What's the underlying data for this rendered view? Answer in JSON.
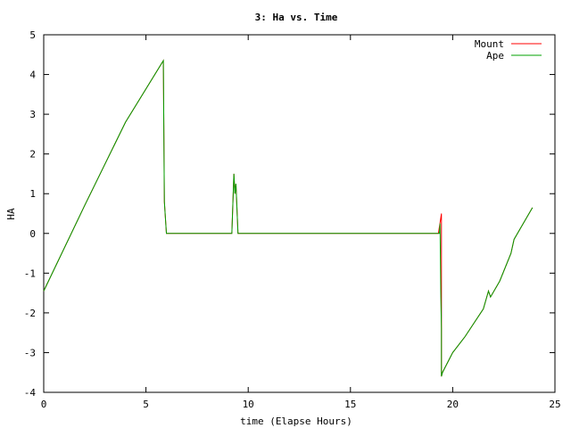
{
  "chart_data": {
    "type": "line",
    "title": "3: Ha vs. Time",
    "xlabel": "time (Elapse Hours)",
    "ylabel": "HA",
    "xlim": [
      0,
      25
    ],
    "ylim": [
      -4,
      5
    ],
    "xticks": [
      0,
      5,
      10,
      15,
      20,
      25
    ],
    "yticks": [
      -4,
      -3,
      -2,
      -1,
      0,
      1,
      2,
      3,
      4,
      5
    ],
    "grid": false,
    "legend_position": "top-right",
    "series": [
      {
        "name": "Mount",
        "color": "#ff0000",
        "points": [
          [
            0,
            -1.45
          ],
          [
            2,
            0.7
          ],
          [
            4,
            2.8
          ],
          [
            5.85,
            4.35
          ],
          [
            5.9,
            0.8
          ],
          [
            6.0,
            0.0
          ],
          [
            9.2,
            0.0
          ],
          [
            9.3,
            1.5
          ],
          [
            9.35,
            1.0
          ],
          [
            9.4,
            1.25
          ],
          [
            9.5,
            0.0
          ],
          [
            19.3,
            0.0
          ],
          [
            19.45,
            0.5
          ],
          [
            19.45,
            -3.6
          ],
          [
            19.5,
            -3.5
          ],
          [
            20.0,
            -3.0
          ],
          [
            20.6,
            -2.6
          ],
          [
            21.5,
            -1.9
          ],
          [
            21.75,
            -1.45
          ],
          [
            21.85,
            -1.6
          ],
          [
            22.3,
            -1.2
          ],
          [
            22.85,
            -0.5
          ],
          [
            23.0,
            -0.15
          ],
          [
            23.9,
            0.65
          ]
        ]
      },
      {
        "name": "Ape",
        "color": "#00a000",
        "points": [
          [
            0,
            -1.45
          ],
          [
            2,
            0.7
          ],
          [
            4,
            2.8
          ],
          [
            5.85,
            4.35
          ],
          [
            5.9,
            0.8
          ],
          [
            6.0,
            0.0
          ],
          [
            9.2,
            0.0
          ],
          [
            9.3,
            1.5
          ],
          [
            9.35,
            1.0
          ],
          [
            9.4,
            1.25
          ],
          [
            9.5,
            0.0
          ],
          [
            19.35,
            0.0
          ],
          [
            19.38,
            0.25
          ],
          [
            19.42,
            -1.6
          ],
          [
            19.45,
            -2.4
          ],
          [
            19.45,
            -3.6
          ],
          [
            19.5,
            -3.5
          ],
          [
            20.0,
            -3.0
          ],
          [
            20.6,
            -2.6
          ],
          [
            21.5,
            -1.9
          ],
          [
            21.75,
            -1.45
          ],
          [
            21.85,
            -1.6
          ],
          [
            22.3,
            -1.2
          ],
          [
            22.85,
            -0.5
          ],
          [
            23.0,
            -0.15
          ],
          [
            23.9,
            0.65
          ]
        ]
      }
    ]
  }
}
